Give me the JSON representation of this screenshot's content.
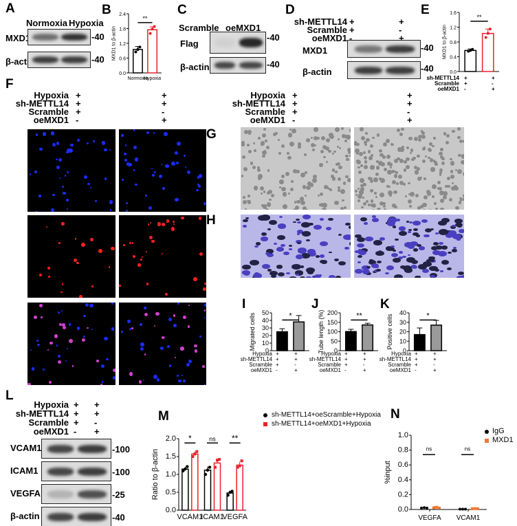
{
  "panels": {
    "A": {
      "label": "A",
      "cols": [
        "Normoxia",
        "Hypoxia"
      ],
      "rows": [
        "MXD1",
        "β-actin"
      ],
      "marker": "40"
    },
    "B": {
      "label": "B"
    },
    "C": {
      "label": "C",
      "cols": [
        "Scramble",
        "oeMXD1"
      ],
      "rows": [
        "Flag",
        "β-actin"
      ],
      "marker": "40"
    },
    "D": {
      "label": "D",
      "conds": [
        {
          "name": "sh-METTL14",
          "v": [
            "+",
            "+"
          ]
        },
        {
          "name": "Scramble",
          "v": [
            "+",
            "-"
          ]
        },
        {
          "name": "oeMXD1",
          "v": [
            "-",
            "+"
          ]
        }
      ],
      "rows": [
        "MXD1",
        "β-actin"
      ],
      "marker": "40"
    },
    "E": {
      "label": "E",
      "conds": [
        {
          "name": "sh-METTL14",
          "v": [
            "+",
            "+"
          ]
        },
        {
          "name": "Scramble",
          "v": [
            "+",
            "-"
          ]
        },
        {
          "name": "oeMXD1",
          "v": [
            "-",
            "+"
          ]
        }
      ]
    },
    "F": {
      "label": "F",
      "conds": [
        {
          "name": "Hypoxia",
          "v": [
            "+",
            "+"
          ]
        },
        {
          "name": "sh-METTL14",
          "v": [
            "+",
            "+"
          ]
        },
        {
          "name": "Scramble",
          "v": [
            "+",
            "-"
          ]
        },
        {
          "name": "oeMXD1",
          "v": [
            "-",
            "+"
          ]
        }
      ]
    },
    "G": {
      "label": "G",
      "conds": [
        {
          "name": "Hypoxia",
          "v": [
            "+",
            "+"
          ]
        },
        {
          "name": "sh-METTL14",
          "v": [
            "+",
            "+"
          ]
        },
        {
          "name": "Scramble",
          "v": [
            "+",
            "-"
          ]
        },
        {
          "name": "oeMXD1",
          "v": [
            "-",
            "+"
          ]
        }
      ]
    },
    "H": {
      "label": "H"
    },
    "I": {
      "label": "I"
    },
    "J": {
      "label": "J"
    },
    "K": {
      "label": "K"
    },
    "IJK_conds": [
      {
        "name": "Hypoxia",
        "v": [
          "+",
          "+"
        ]
      },
      {
        "name": "sh-METTL14",
        "v": [
          "+",
          "+"
        ]
      },
      {
        "name": "Scramble",
        "v": [
          "+",
          "-"
        ]
      },
      {
        "name": "oeMXD1",
        "v": [
          "-",
          "+"
        ]
      }
    ],
    "L": {
      "label": "L",
      "conds": [
        {
          "name": "Hypoxia",
          "v": [
            "+",
            "+"
          ]
        },
        {
          "name": "sh-METTL14",
          "v": [
            "+",
            "+"
          ]
        },
        {
          "name": "Scramble",
          "v": [
            "+",
            "-"
          ]
        },
        {
          "name": "oeMXD1",
          "v": [
            "-",
            "+"
          ]
        }
      ],
      "rows": [
        {
          "name": "VCAM1",
          "marker": "100"
        },
        {
          "name": "ICAM1",
          "marker": "100"
        },
        {
          "name": "VEGFA",
          "marker": "25"
        },
        {
          "name": "β-actin",
          "marker": "40"
        }
      ]
    },
    "M": {
      "label": "M"
    },
    "N": {
      "label": "N"
    }
  },
  "colors": {
    "black": "#000000",
    "red": "#e8202a",
    "gray": "#9a9a9a",
    "orange": "#f07830",
    "dapi": "#1a2cff",
    "red_stain": "#ff2020"
  },
  "chart_data": [
    {
      "id": "B",
      "type": "bar",
      "ylabel": "MXD1 to β-actin",
      "ylim": [
        0,
        2.4
      ],
      "yticks": [
        "0.0",
        "0.6",
        "1.2",
        "1.8",
        "2.4"
      ],
      "categories": [
        "Normoxia",
        "Hypoxia"
      ],
      "values": [
        0.95,
        1.75
      ],
      "errors": [
        0.12,
        0.12
      ],
      "points": [
        [
          0.85,
          0.95,
          1.05
        ],
        [
          1.6,
          1.78,
          1.88
        ]
      ],
      "sig": "**",
      "style": "open"
    },
    {
      "id": "E",
      "type": "bar",
      "ylabel": "MXD1 to β-actin",
      "ylim": [
        0,
        1.6
      ],
      "yticks": [
        "0.0",
        "0.4",
        "0.8",
        "1.2",
        "1.6"
      ],
      "categories": [
        "",
        ""
      ],
      "values": [
        0.57,
        1.03
      ],
      "errors": [
        0.04,
        0.12
      ],
      "points": [
        [
          0.55,
          0.57,
          0.6
        ],
        [
          0.92,
          1.03,
          1.15
        ]
      ],
      "sig": "**",
      "style": "open"
    },
    {
      "id": "I",
      "type": "bar",
      "ylabel": "Migrated cells",
      "ylim": [
        0,
        50
      ],
      "yticks": [
        "0",
        "10",
        "20",
        "30",
        "40",
        "50"
      ],
      "values": [
        25,
        38
      ],
      "errors": [
        4,
        8.5
      ],
      "sig": "*",
      "style": "filled"
    },
    {
      "id": "J",
      "type": "bar",
      "ylabel": "Tube length (%)",
      "ylim": [
        0,
        200
      ],
      "yticks": [
        "0",
        "50",
        "100",
        "150",
        "200"
      ],
      "values": [
        101,
        136
      ],
      "errors": [
        12,
        9
      ],
      "sig": "**",
      "style": "filled"
    },
    {
      "id": "K",
      "type": "bar",
      "ylabel": "Positive cells",
      "ylim": [
        0,
        40
      ],
      "yticks": [
        "0",
        "10",
        "20",
        "30",
        "40"
      ],
      "values": [
        17,
        27
      ],
      "errors": [
        7,
        5
      ],
      "sig": "*",
      "style": "filled"
    },
    {
      "id": "M",
      "type": "grouped-bar",
      "ylabel": "Ratio to β-actin",
      "ylim": [
        0,
        2.0
      ],
      "yticks": [
        "0.0",
        "0.5",
        "1.0",
        "1.5",
        "2.0"
      ],
      "categories": [
        "VCAM1",
        "ICAM1",
        "VEGFA"
      ],
      "series": [
        {
          "name": "sh-METTL14+oeScramble+Hypoxia",
          "values": [
            1.15,
            1.12,
            0.48
          ],
          "errors": [
            0.06,
            0.1,
            0.06
          ],
          "points": [
            [
              1.1,
              1.15,
              1.22
            ],
            [
              1.0,
              1.12,
              1.2
            ],
            [
              0.42,
              0.5,
              0.53
            ]
          ]
        },
        {
          "name": "sh-METTL14+oeMXD1+Hypoxia",
          "values": [
            1.57,
            1.32,
            1.26
          ],
          "errors": [
            0.07,
            0.12,
            0.1
          ],
          "points": [
            [
              1.5,
              1.57,
              1.64
            ],
            [
              1.2,
              1.4,
              1.42
            ],
            [
              1.2,
              1.24,
              1.38
            ]
          ]
        }
      ],
      "sig": [
        "*",
        "ns",
        "**"
      ]
    },
    {
      "id": "N",
      "type": "scatter",
      "ylabel": "%input",
      "ylim": [
        0,
        1.0
      ],
      "yticks": [
        "0.0",
        "0.2",
        "0.4",
        "0.6",
        "0.8",
        "1.0"
      ],
      "categories": [
        "VEGFA",
        "VCAM1"
      ],
      "series": [
        {
          "name": "IgG",
          "values": [
            [
              0.02,
              0.025,
              0.02
            ],
            [
              0.005,
              0.005,
              0.005
            ]
          ]
        },
        {
          "name": "MXD1",
          "values": [
            [
              0.025,
              0.03,
              0.02
            ],
            [
              0.01,
              0.012,
              0.01
            ]
          ]
        }
      ],
      "sig": [
        "ns",
        "ns"
      ],
      "legend": "top-right"
    }
  ]
}
